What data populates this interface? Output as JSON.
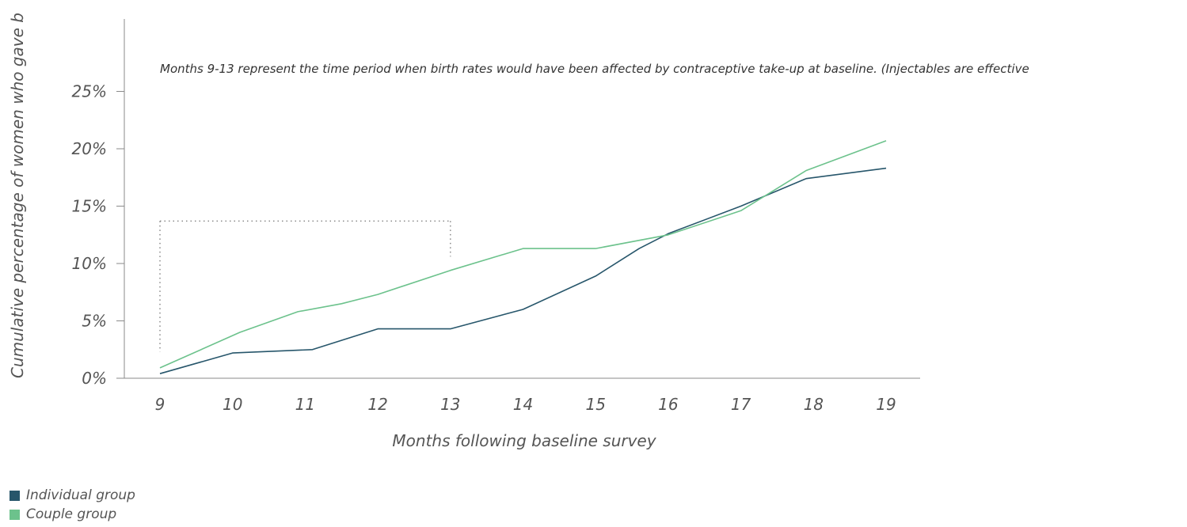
{
  "colors": {
    "individual": "#27566b",
    "couple": "#6cc28c",
    "axis": "#8a8a8a",
    "bracket": "#888888"
  },
  "chart_data": {
    "type": "line",
    "title": "",
    "xlabel": "Months following baseline survey",
    "ylabel": "Cumulative percentage of women who gave b",
    "x": [
      9,
      10,
      11,
      12,
      13,
      14,
      15,
      16,
      17,
      18,
      19
    ],
    "x_tick_labels": [
      "9",
      "10",
      "11",
      "12",
      "13",
      "14",
      "15",
      "16",
      "17",
      "18",
      "19"
    ],
    "ylim": [
      0,
      25
    ],
    "y_ticks": [
      0,
      5,
      10,
      15,
      20,
      25
    ],
    "y_tick_labels": [
      "0%",
      "5%",
      "10%",
      "15%",
      "20%",
      "25%"
    ],
    "grid": false,
    "legend_position": "bottom-left",
    "series": [
      {
        "name": "Individual group",
        "color": "#27566b",
        "points": [
          [
            9,
            0.4
          ],
          [
            10,
            2.2
          ],
          [
            11.1,
            2.5
          ],
          [
            12,
            4.3
          ],
          [
            13,
            4.3
          ],
          [
            14,
            6.0
          ],
          [
            15,
            8.9
          ],
          [
            15.6,
            11.3
          ],
          [
            16,
            12.6
          ],
          [
            17,
            15.0
          ],
          [
            17.9,
            17.4
          ],
          [
            19,
            18.3
          ]
        ]
      },
      {
        "name": "Couple group",
        "color": "#6cc28c",
        "points": [
          [
            9,
            0.9
          ],
          [
            10.1,
            4.0
          ],
          [
            10.9,
            5.8
          ],
          [
            11.5,
            6.5
          ],
          [
            12,
            7.3
          ],
          [
            13,
            9.4
          ],
          [
            14,
            11.3
          ],
          [
            15,
            11.3
          ],
          [
            16,
            12.5
          ],
          [
            17,
            14.6
          ],
          [
            17.9,
            18.1
          ],
          [
            19,
            20.7
          ]
        ]
      }
    ],
    "annotation": "Months 9-13 represent the time period when birth rates would have been affected by contraceptive take-up at baseline. (Injectables are effective",
    "bracket": {
      "x_start": 9,
      "x_end": 13,
      "y_top": 13.7,
      "y_left_bottom": 2.3,
      "y_right_bottom": 10.6
    }
  }
}
